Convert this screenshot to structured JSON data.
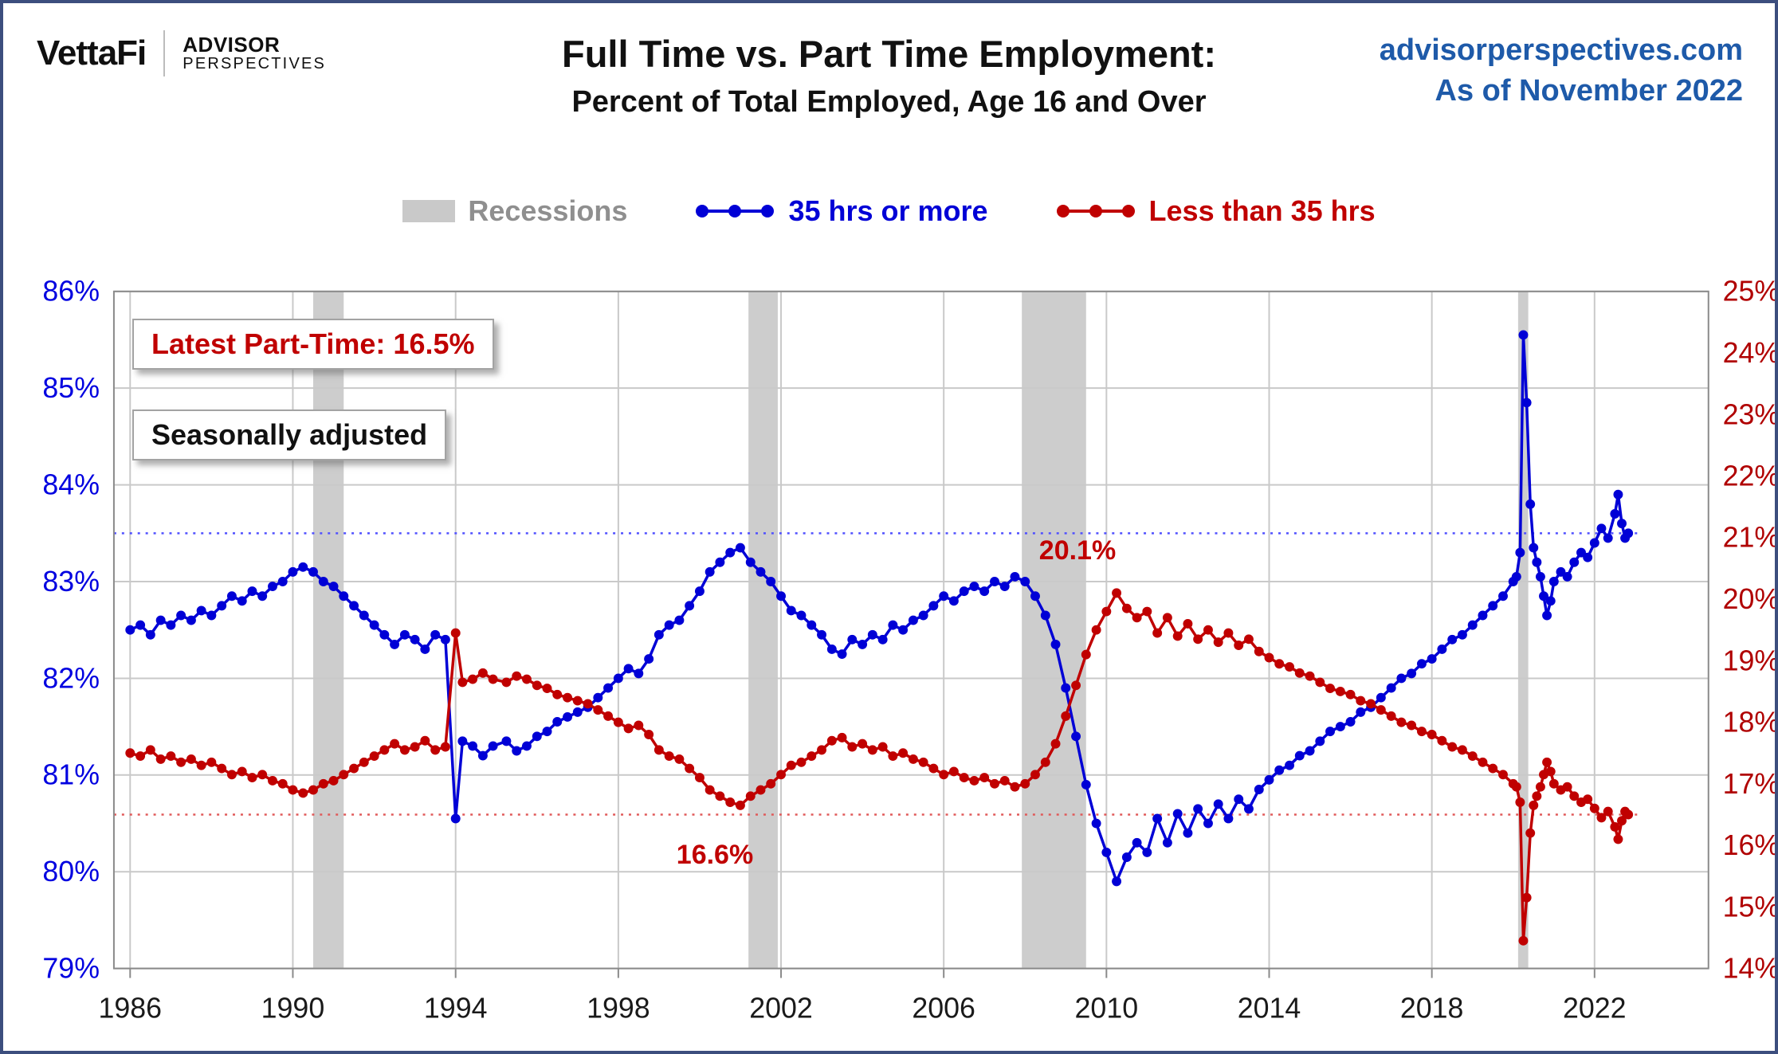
{
  "branding": {
    "vettafi": "VettaFi",
    "advisor": "ADVISOR",
    "perspectives": "PERSPECTIVES"
  },
  "title": "Full Time vs. Part Time Employment:",
  "subtitle": "Percent of Total Employed, Age 16 and Over",
  "source": {
    "site": "advisorperspectives.com",
    "as_of": "As of November 2022"
  },
  "legend": {
    "items": [
      {
        "label": "Recessions",
        "color": "#c9c9c9"
      },
      {
        "label": "35 hrs or more",
        "color": "#0000d6"
      },
      {
        "label": "Less than 35 hrs",
        "color": "#c00000"
      }
    ]
  },
  "annotations": {
    "latest_part_time": "Latest Part-Time: 16.5%",
    "seasonally_adjusted": "Seasonally adjusted",
    "part_time_peak": "20.1%",
    "part_time_trough": "16.6%"
  },
  "chart_data": {
    "type": "line",
    "title": "Full Time vs. Part Time Employment: Percent of Total Employed, Age 16 and Over",
    "colors": {
      "band": "#cdcdcd",
      "grid": "#c9c9c9",
      "axis_blue": "#0000e0",
      "axis_red": "#b00000",
      "blue": "#0000d6",
      "red": "#c00000"
    },
    "axes": {
      "left": {
        "min": 79,
        "max": 86,
        "ticks": [
          86,
          85,
          84,
          83,
          82,
          81,
          80,
          79
        ],
        "format": "percent"
      },
      "right": {
        "min": 14,
        "max": 25,
        "ticks": [
          25,
          24,
          23,
          22,
          21,
          20,
          19,
          18,
          17,
          16,
          15,
          14
        ],
        "format": "percent"
      },
      "x": {
        "min": 1986,
        "max": 2022.83,
        "ticks": [
          1986,
          1990,
          1994,
          1998,
          2002,
          2006,
          2010,
          2014,
          2018,
          2022
        ]
      }
    },
    "recessions": [
      [
        1990.5,
        1991.25
      ],
      [
        2001.2,
        2001.92
      ],
      [
        2007.92,
        2009.5
      ],
      [
        2020.12,
        2020.37
      ]
    ],
    "reference_lines": [
      {
        "series": "35 hrs or more",
        "axis": "left",
        "value": 83.5,
        "color": "#5050ff"
      },
      {
        "series": "Less than 35 hrs",
        "axis": "right",
        "value": 16.5,
        "color": "#e05a5a"
      }
    ],
    "x": [
      1986,
      1986.25,
      1986.5,
      1986.75,
      1987,
      1987.25,
      1987.5,
      1987.75,
      1988,
      1988.25,
      1988.5,
      1988.75,
      1989,
      1989.25,
      1989.5,
      1989.75,
      1990,
      1990.25,
      1990.5,
      1990.75,
      1991,
      1991.25,
      1991.5,
      1991.75,
      1992,
      1992.25,
      1992.5,
      1992.75,
      1993,
      1993.25,
      1993.5,
      1993.75,
      1994,
      1994.17,
      1994.42,
      1994.67,
      1994.92,
      1995.25,
      1995.5,
      1995.75,
      1996,
      1996.25,
      1996.5,
      1996.75,
      1997,
      1997.25,
      1997.5,
      1997.75,
      1998,
      1998.25,
      1998.5,
      1998.75,
      1999,
      1999.25,
      1999.5,
      1999.75,
      2000,
      2000.25,
      2000.5,
      2000.75,
      2001,
      2001.25,
      2001.5,
      2001.75,
      2002,
      2002.25,
      2002.5,
      2002.75,
      2003,
      2003.25,
      2003.5,
      2003.75,
      2004,
      2004.25,
      2004.5,
      2004.75,
      2005,
      2005.25,
      2005.5,
      2005.75,
      2006,
      2006.25,
      2006.5,
      2006.75,
      2007,
      2007.25,
      2007.5,
      2007.75,
      2008,
      2008.25,
      2008.5,
      2008.75,
      2009,
      2009.25,
      2009.5,
      2009.75,
      2010,
      2010.25,
      2010.5,
      2010.75,
      2011,
      2011.25,
      2011.5,
      2011.75,
      2012,
      2012.25,
      2012.5,
      2012.75,
      2013,
      2013.25,
      2013.5,
      2013.75,
      2014,
      2014.25,
      2014.5,
      2014.75,
      2015,
      2015.25,
      2015.5,
      2015.75,
      2016,
      2016.25,
      2016.5,
      2016.75,
      2017,
      2017.25,
      2017.5,
      2017.75,
      2018,
      2018.25,
      2018.5,
      2018.75,
      2019,
      2019.25,
      2019.5,
      2019.75,
      2020,
      2020.08,
      2020.17,
      2020.25,
      2020.33,
      2020.42,
      2020.5,
      2020.58,
      2020.67,
      2020.75,
      2020.83,
      2020.92,
      2021,
      2021.17,
      2021.33,
      2021.5,
      2021.67,
      2021.83,
      2022,
      2022.17,
      2022.33,
      2022.5,
      2022.58,
      2022.67,
      2022.75,
      2022.83
    ],
    "series": [
      {
        "name": "35 hrs or more",
        "axis": "left",
        "color": "#0000d6",
        "values": [
          82.5,
          82.55,
          82.45,
          82.6,
          82.55,
          82.65,
          82.6,
          82.7,
          82.65,
          82.75,
          82.85,
          82.8,
          82.9,
          82.85,
          82.95,
          83,
          83.1,
          83.15,
          83.1,
          83,
          82.95,
          82.85,
          82.75,
          82.65,
          82.55,
          82.45,
          82.35,
          82.45,
          82.4,
          82.3,
          82.45,
          82.4,
          80.55,
          81.35,
          81.3,
          81.2,
          81.3,
          81.35,
          81.25,
          81.3,
          81.4,
          81.45,
          81.55,
          81.6,
          81.65,
          81.7,
          81.8,
          81.9,
          82,
          82.1,
          82.05,
          82.2,
          82.45,
          82.55,
          82.6,
          82.75,
          82.9,
          83.1,
          83.2,
          83.3,
          83.35,
          83.2,
          83.1,
          83,
          82.85,
          82.7,
          82.65,
          82.55,
          82.45,
          82.3,
          82.25,
          82.4,
          82.35,
          82.45,
          82.4,
          82.55,
          82.5,
          82.6,
          82.65,
          82.75,
          82.85,
          82.8,
          82.9,
          82.95,
          82.9,
          83,
          82.95,
          83.05,
          83,
          82.85,
          82.65,
          82.35,
          81.9,
          81.4,
          80.9,
          80.5,
          80.2,
          79.9,
          80.15,
          80.3,
          80.2,
          80.55,
          80.3,
          80.6,
          80.4,
          80.65,
          80.5,
          80.7,
          80.55,
          80.75,
          80.65,
          80.85,
          80.95,
          81.05,
          81.1,
          81.2,
          81.25,
          81.35,
          81.45,
          81.5,
          81.55,
          81.65,
          81.7,
          81.8,
          81.9,
          82,
          82.05,
          82.15,
          82.2,
          82.3,
          82.4,
          82.45,
          82.55,
          82.65,
          82.75,
          82.85,
          83,
          83.05,
          83.3,
          85.55,
          84.85,
          83.8,
          83.35,
          83.2,
          83.05,
          82.85,
          82.65,
          82.8,
          83,
          83.1,
          83.05,
          83.2,
          83.3,
          83.25,
          83.4,
          83.55,
          83.45,
          83.7,
          83.9,
          83.6,
          83.45,
          83.5
        ]
      },
      {
        "name": "Less than 35 hrs",
        "axis": "right",
        "color": "#c00000",
        "values": [
          17.5,
          17.45,
          17.55,
          17.4,
          17.45,
          17.35,
          17.4,
          17.3,
          17.35,
          17.25,
          17.15,
          17.2,
          17.1,
          17.15,
          17.05,
          17,
          16.9,
          16.85,
          16.9,
          17,
          17.05,
          17.15,
          17.25,
          17.35,
          17.45,
          17.55,
          17.65,
          17.55,
          17.6,
          17.7,
          17.55,
          17.6,
          19.45,
          18.65,
          18.7,
          18.8,
          18.7,
          18.65,
          18.75,
          18.7,
          18.6,
          18.55,
          18.45,
          18.4,
          18.35,
          18.3,
          18.2,
          18.1,
          18,
          17.9,
          17.95,
          17.8,
          17.55,
          17.45,
          17.4,
          17.25,
          17.1,
          16.9,
          16.8,
          16.7,
          16.65,
          16.8,
          16.9,
          17,
          17.15,
          17.3,
          17.35,
          17.45,
          17.55,
          17.7,
          17.75,
          17.6,
          17.65,
          17.55,
          17.6,
          17.45,
          17.5,
          17.4,
          17.35,
          17.25,
          17.15,
          17.2,
          17.1,
          17.05,
          17.1,
          17,
          17.05,
          16.95,
          17,
          17.15,
          17.35,
          17.65,
          18.1,
          18.6,
          19.1,
          19.5,
          19.8,
          20.1,
          19.85,
          19.7,
          19.8,
          19.45,
          19.7,
          19.4,
          19.6,
          19.35,
          19.5,
          19.3,
          19.45,
          19.25,
          19.35,
          19.15,
          19.05,
          18.95,
          18.9,
          18.8,
          18.75,
          18.65,
          18.55,
          18.5,
          18.45,
          18.35,
          18.3,
          18.2,
          18.1,
          18,
          17.95,
          17.85,
          17.8,
          17.7,
          17.6,
          17.55,
          17.45,
          17.35,
          17.25,
          17.15,
          17,
          16.95,
          16.7,
          14.45,
          15.15,
          16.2,
          16.65,
          16.8,
          16.95,
          17.15,
          17.35,
          17.2,
          17,
          16.9,
          16.95,
          16.8,
          16.7,
          16.75,
          16.6,
          16.45,
          16.55,
          16.3,
          16.1,
          16.4,
          16.55,
          16.5
        ]
      }
    ]
  }
}
